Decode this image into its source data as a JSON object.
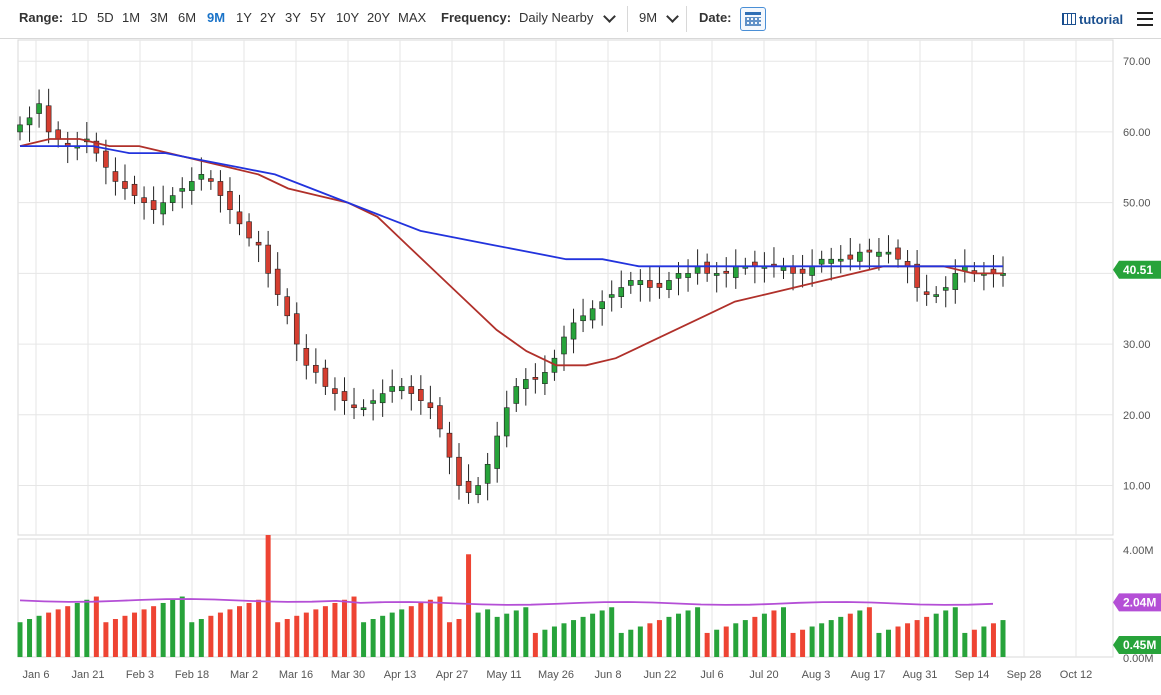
{
  "toolbar": {
    "range_label": "Range:",
    "ranges": [
      "1D",
      "5D",
      "1M",
      "3M",
      "6M",
      "9M",
      "1Y",
      "2Y",
      "3Y",
      "5Y",
      "10Y",
      "20Y",
      "MAX"
    ],
    "active_range": "9M",
    "frequency_label": "Frequency:",
    "frequency_value": "Daily Nearby",
    "period_value": "9M",
    "date_label": "Date:",
    "tutorial_label": "tutorial"
  },
  "chart_data": [
    {
      "type": "candlestick",
      "title": "",
      "ylim": [
        3,
        73
      ],
      "y_ticks": [
        "70.00",
        "60.00",
        "50.00",
        "40.00",
        "30.00",
        "20.00",
        "10.00"
      ],
      "x_ticks": [
        "Jan 6",
        "Jan 21",
        "Feb 3",
        "Feb 18",
        "Mar 2",
        "Mar 16",
        "Mar 30",
        "Apr 13",
        "Apr 27",
        "May 11",
        "May 26",
        "Jun 8",
        "Jun 22",
        "Jul 6",
        "Jul 20",
        "Aug 3",
        "Aug 17",
        "Aug 31",
        "Sep 14",
        "Sep 28",
        "Oct 12"
      ],
      "last_price_label": "40.51",
      "close_path": [
        61,
        62,
        64,
        60,
        59,
        58,
        58,
        59,
        57,
        55,
        53,
        52,
        51,
        50,
        49,
        50,
        51,
        52,
        53,
        54,
        53,
        51,
        49,
        47,
        45,
        44,
        40,
        37,
        34,
        30,
        27,
        26,
        24,
        23,
        22,
        21,
        21,
        22,
        23,
        24,
        24,
        23,
        22,
        21,
        18,
        14,
        10,
        9,
        10,
        13,
        17,
        21,
        24,
        25,
        25,
        26,
        28,
        31,
        33,
        34,
        35,
        36,
        37,
        38,
        39,
        39,
        38,
        38,
        39,
        40,
        40,
        41,
        40,
        40,
        40,
        41,
        41,
        41,
        41,
        41,
        41,
        40,
        40,
        41,
        42,
        42,
        42,
        42,
        43,
        43,
        43,
        43,
        42,
        41,
        38,
        37,
        37,
        38,
        40,
        41,
        40,
        40,
        40,
        40
      ],
      "ma_fast": {
        "color": "#b0302a",
        "values": [
          58,
          59,
          59,
          58,
          58,
          57,
          56,
          55,
          54,
          52,
          51,
          50,
          48,
          44,
          40,
          36,
          32,
          29,
          27,
          27,
          28,
          30,
          32,
          34,
          36,
          37,
          38,
          39,
          40,
          41,
          41,
          41,
          40,
          40
        ]
      },
      "ma_slow": {
        "color": "#2233dd",
        "values": [
          58,
          58,
          58,
          57,
          57,
          56,
          55,
          54,
          52,
          50,
          48,
          46,
          45,
          44,
          43,
          42,
          42,
          41,
          41,
          41,
          41,
          41,
          41,
          41,
          41,
          41,
          41,
          41
        ]
      },
      "series_colors": {
        "up": "#27a33a",
        "down": "#d53e30"
      }
    },
    {
      "type": "bar",
      "title": "",
      "y_ticks": [
        "4.00M",
        "0.00M"
      ],
      "volume_ma_label": "2.04M",
      "last_volume_label": "0.45M",
      "volume_ma_color": "#b44fd6",
      "bar_colors": {
        "up": "#27a33a",
        "down": "#ee4433"
      }
    }
  ]
}
